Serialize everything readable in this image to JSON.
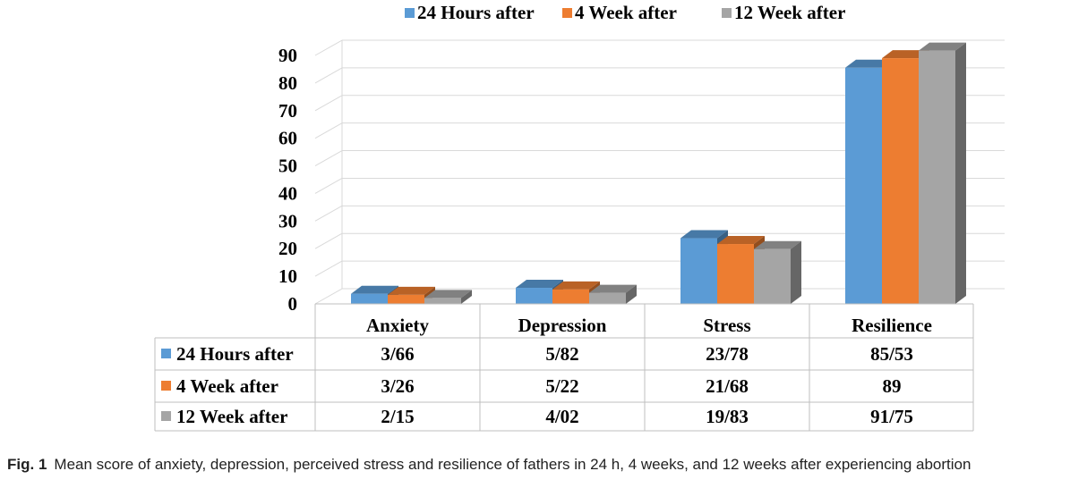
{
  "caption": {
    "label": "Fig. 1",
    "text": "Mean score of anxiety, depression, perceived stress and resilience of fathers in 24 h, 4 weeks, and 12 weeks after experiencing abortion"
  },
  "chart_data": {
    "type": "bar",
    "style": "3d-clustered-column-with-data-table",
    "categories": [
      "Anxiety",
      "Depression",
      "Stress",
      "Resilience"
    ],
    "series": [
      {
        "name": "24 Hours after",
        "color": "#5b9bd5",
        "values": [
          3.66,
          5.82,
          23.78,
          85.53
        ],
        "table_labels": [
          "3/66",
          "5/82",
          "23/78",
          "85/53"
        ]
      },
      {
        "name": "4 Week after",
        "color": "#ed7d31",
        "values": [
          3.26,
          5.22,
          21.68,
          89
        ],
        "table_labels": [
          "3/26",
          "5/22",
          "21/68",
          "89"
        ]
      },
      {
        "name": "12 Week after",
        "color": "#a5a5a5",
        "values": [
          2.15,
          4.02,
          19.83,
          91.75
        ],
        "table_labels": [
          "2/15",
          "4/02",
          "19/83",
          "91/75"
        ]
      }
    ],
    "ylim": [
      0,
      90
    ],
    "yticks": [
      0,
      10,
      20,
      30,
      40,
      50,
      60,
      70,
      80,
      90
    ],
    "grid": true,
    "legend_position": "top-center",
    "title": "",
    "xlabel": "",
    "ylabel": ""
  }
}
